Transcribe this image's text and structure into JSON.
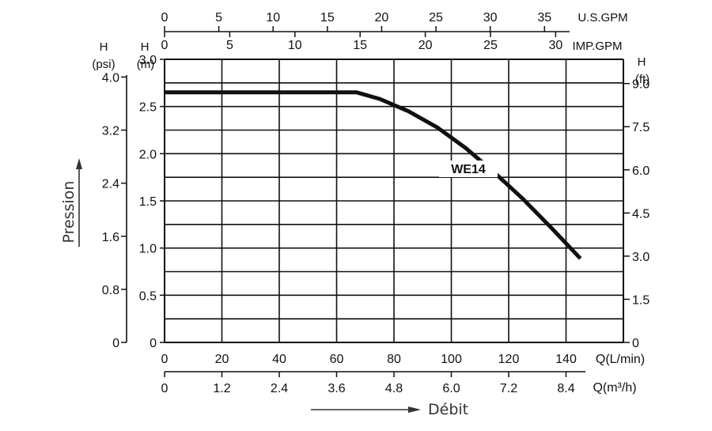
{
  "chart_data": {
    "type": "line",
    "series": [
      {
        "name": "WE14",
        "x": [
          0,
          10,
          20,
          30,
          40,
          50,
          60,
          67,
          75,
          85,
          95,
          105,
          115,
          125,
          135,
          145
        ],
        "y": [
          2.65,
          2.65,
          2.65,
          2.65,
          2.65,
          2.65,
          2.65,
          2.65,
          2.58,
          2.45,
          2.28,
          2.06,
          1.8,
          1.52,
          1.21,
          0.89
        ]
      }
    ],
    "xlim": [
      0,
      160
    ],
    "ylim": [
      0,
      3.0
    ],
    "grid": true,
    "axes": {
      "bottom_primary": {
        "unit_label": "Q(L/min)",
        "ticks": [
          "0",
          "20",
          "40",
          "60",
          "80",
          "100",
          "120",
          "140"
        ]
      },
      "bottom_secondary": {
        "unit_label": "Q(m³/h)",
        "ticks": [
          "0",
          "1.2",
          "2.4",
          "3.6",
          "4.8",
          "6.0",
          "7.2",
          "8.4"
        ]
      },
      "top_us": {
        "unit_label": "U.S.GPM",
        "ticks": [
          "0",
          "5",
          "10",
          "15",
          "20",
          "25",
          "30",
          "35"
        ]
      },
      "top_imp": {
        "unit_label": "IMP.GPM",
        "ticks": [
          "0",
          "5",
          "10",
          "15",
          "20",
          "25",
          "30"
        ]
      },
      "left_m": {
        "unit_label_1": "H",
        "unit_label_2": "(m)",
        "ticks": [
          "0",
          "0.5",
          "1.0",
          "1.5",
          "2.0",
          "2.5",
          "3.0"
        ]
      },
      "left_psi": {
        "unit_label_1": "H",
        "unit_label_2": "(psi)",
        "ticks": [
          "0",
          "0.8",
          "1.6",
          "2.4",
          "3.2",
          "4.0"
        ]
      },
      "right_ft": {
        "unit_label_1": "H",
        "unit_label_2": "(ft)",
        "ticks": [
          "0",
          "1.5",
          "3.0",
          "4.5",
          "6.0",
          "7.5",
          "9.0"
        ]
      }
    },
    "ylabel": "Pression",
    "xlabel": "Débit"
  }
}
